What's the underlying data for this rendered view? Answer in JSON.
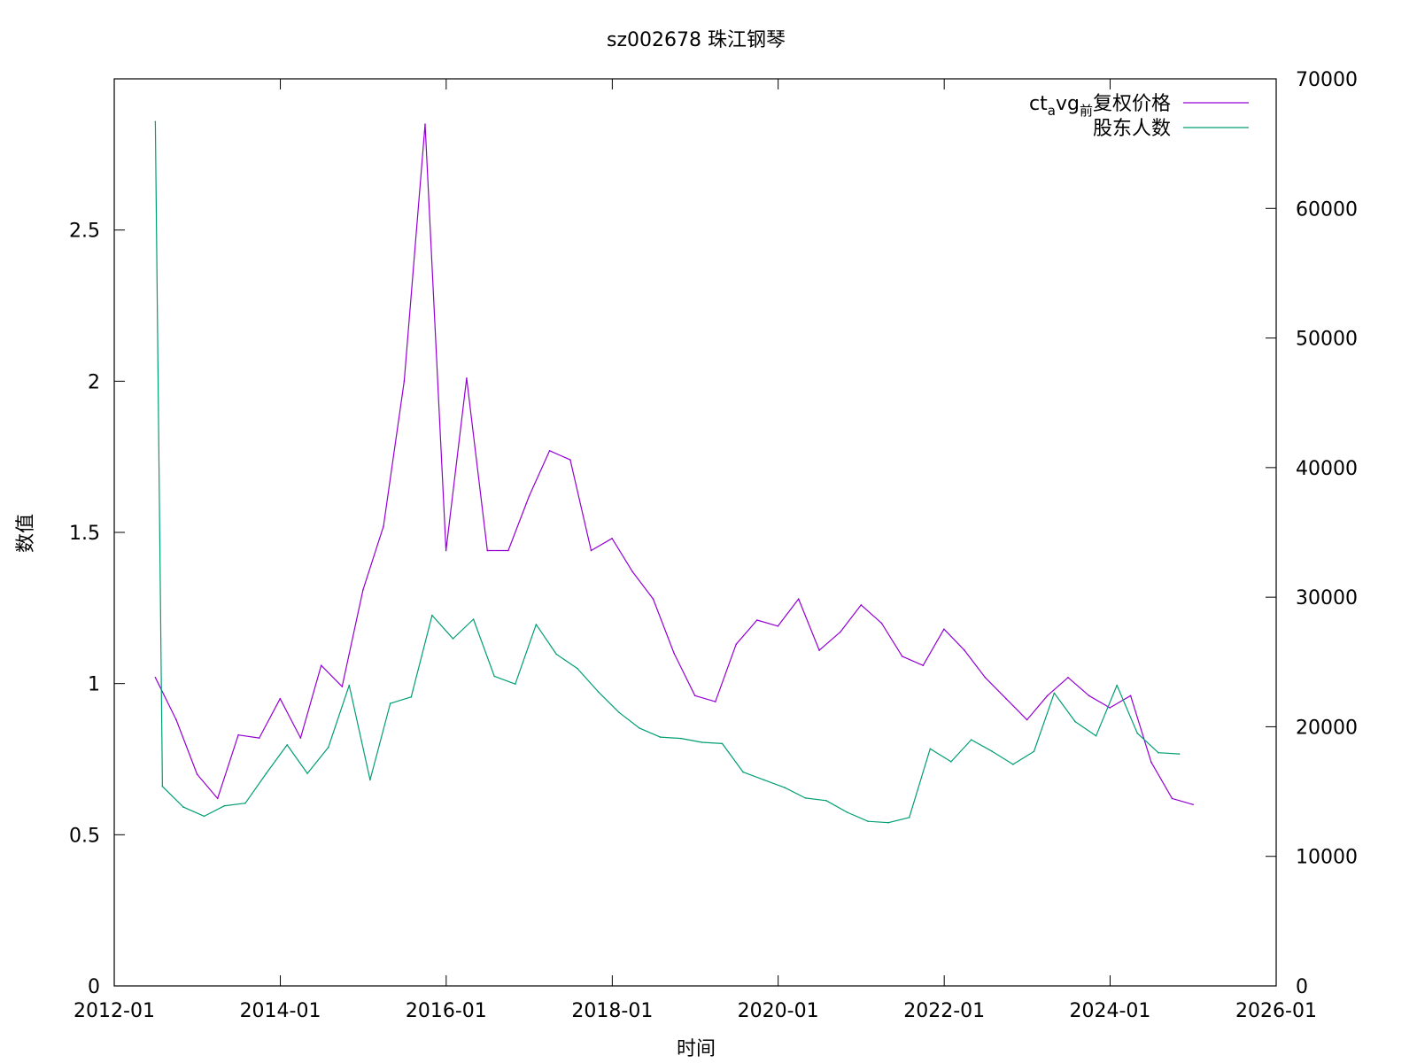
{
  "chart_data": {
    "type": "line",
    "title": "sz002678 珠江钢琴",
    "xlabel": "时间",
    "ylabel": "数值",
    "y2label": "",
    "xlim": [
      "2012-01",
      "2026-01"
    ],
    "ylim": [
      0,
      3.0
    ],
    "y2lim": [
      0,
      70000
    ],
    "x_ticks": [
      "2012-01",
      "2014-01",
      "2016-01",
      "2018-01",
      "2020-01",
      "2022-01",
      "2024-01",
      "2026-01"
    ],
    "y_ticks": [
      "0",
      "0.5",
      "1",
      "1.5",
      "2",
      "2.5"
    ],
    "y2_ticks": [
      "0",
      "10000",
      "20000",
      "30000",
      "40000",
      "50000",
      "60000",
      "70000"
    ],
    "legend_position": "top-right",
    "legend": {
      "price_prefix": "ct",
      "price_sub_a": "a",
      "price_mid": "vg",
      "price_sub_b": "前",
      "price_suffix": "复权价格",
      "holders": "股东人数"
    },
    "series": [
      {
        "name": "ct_avg_前复权价格",
        "axis": "left",
        "color": "#9400d3",
        "points": [
          [
            "2012-06-30",
            1.02
          ],
          [
            "2012-09-30",
            0.88
          ],
          [
            "2012-12-31",
            0.7
          ],
          [
            "2013-03-31",
            0.62
          ],
          [
            "2013-06-30",
            0.83
          ],
          [
            "2013-09-30",
            0.82
          ],
          [
            "2013-12-31",
            0.95
          ],
          [
            "2014-03-31",
            0.82
          ],
          [
            "2014-06-30",
            1.06
          ],
          [
            "2014-09-30",
            0.99
          ],
          [
            "2014-12-31",
            1.31
          ],
          [
            "2015-03-31",
            1.52
          ],
          [
            "2015-06-30",
            2.0
          ],
          [
            "2015-09-30",
            2.85
          ],
          [
            "2015-12-31",
            1.44
          ],
          [
            "2016-03-31",
            2.01
          ],
          [
            "2016-06-30",
            1.44
          ],
          [
            "2016-09-30",
            1.44
          ],
          [
            "2016-12-31",
            1.62
          ],
          [
            "2017-03-31",
            1.77
          ],
          [
            "2017-06-30",
            1.74
          ],
          [
            "2017-09-30",
            1.44
          ],
          [
            "2017-12-31",
            1.48
          ],
          [
            "2018-03-31",
            1.37
          ],
          [
            "2018-06-30",
            1.28
          ],
          [
            "2018-09-30",
            1.1
          ],
          [
            "2018-12-31",
            0.96
          ],
          [
            "2019-03-31",
            0.94
          ],
          [
            "2019-06-30",
            1.13
          ],
          [
            "2019-09-30",
            1.21
          ],
          [
            "2019-12-31",
            1.19
          ],
          [
            "2020-03-31",
            1.28
          ],
          [
            "2020-06-30",
            1.11
          ],
          [
            "2020-09-30",
            1.17
          ],
          [
            "2020-12-31",
            1.26
          ],
          [
            "2021-03-31",
            1.2
          ],
          [
            "2021-06-30",
            1.09
          ],
          [
            "2021-09-30",
            1.06
          ],
          [
            "2021-12-31",
            1.18
          ],
          [
            "2022-03-31",
            1.11
          ],
          [
            "2022-06-30",
            1.02
          ],
          [
            "2022-09-30",
            0.95
          ],
          [
            "2022-12-31",
            0.88
          ],
          [
            "2023-03-31",
            0.96
          ],
          [
            "2023-06-30",
            1.02
          ],
          [
            "2023-09-30",
            0.96
          ],
          [
            "2023-12-31",
            0.92
          ],
          [
            "2024-03-31",
            0.96
          ],
          [
            "2024-06-30",
            0.74
          ],
          [
            "2024-09-30",
            0.62
          ],
          [
            "2024-12-31",
            0.6
          ]
        ]
      },
      {
        "name": "股东人数",
        "axis": "right",
        "color": "#009e73",
        "points": [
          [
            "2012-06-30",
            66700
          ],
          [
            "2012-07-31",
            15400
          ],
          [
            "2012-10-31",
            13800
          ],
          [
            "2013-01-31",
            13100
          ],
          [
            "2013-04-30",
            13900
          ],
          [
            "2013-07-31",
            14100
          ],
          [
            "2013-10-31",
            16400
          ],
          [
            "2014-01-31",
            18600
          ],
          [
            "2014-04-30",
            16400
          ],
          [
            "2014-07-31",
            18400
          ],
          [
            "2014-10-31",
            23200
          ],
          [
            "2015-01-31",
            15900
          ],
          [
            "2015-04-30",
            21800
          ],
          [
            "2015-07-31",
            22300
          ],
          [
            "2015-10-31",
            28600
          ],
          [
            "2016-01-31",
            26800
          ],
          [
            "2016-04-30",
            28300
          ],
          [
            "2016-07-31",
            23900
          ],
          [
            "2016-10-31",
            23300
          ],
          [
            "2017-01-31",
            27900
          ],
          [
            "2017-04-30",
            25600
          ],
          [
            "2017-07-31",
            24500
          ],
          [
            "2017-10-31",
            22700
          ],
          [
            "2018-01-31",
            21100
          ],
          [
            "2018-04-30",
            19900
          ],
          [
            "2018-07-31",
            19200
          ],
          [
            "2018-10-31",
            19100
          ],
          [
            "2019-01-31",
            18800
          ],
          [
            "2019-04-30",
            18700
          ],
          [
            "2019-07-31",
            16500
          ],
          [
            "2019-10-31",
            15900
          ],
          [
            "2020-01-31",
            15300
          ],
          [
            "2020-04-30",
            14500
          ],
          [
            "2020-07-31",
            14300
          ],
          [
            "2020-10-31",
            13400
          ],
          [
            "2021-01-31",
            12700
          ],
          [
            "2021-04-30",
            12600
          ],
          [
            "2021-07-31",
            13000
          ],
          [
            "2021-10-31",
            18300
          ],
          [
            "2022-01-31",
            17300
          ],
          [
            "2022-04-30",
            19000
          ],
          [
            "2022-07-31",
            18100
          ],
          [
            "2022-10-31",
            17100
          ],
          [
            "2023-01-31",
            18100
          ],
          [
            "2023-04-30",
            22600
          ],
          [
            "2023-07-31",
            20400
          ],
          [
            "2023-10-31",
            19300
          ],
          [
            "2024-01-31",
            23200
          ],
          [
            "2024-04-30",
            19500
          ],
          [
            "2024-07-31",
            18000
          ],
          [
            "2024-10-31",
            17900
          ]
        ]
      }
    ]
  }
}
